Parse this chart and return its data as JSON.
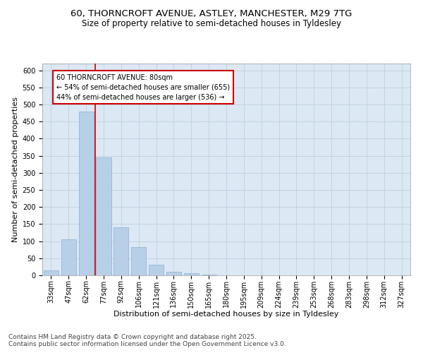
{
  "title_line1": "60, THORNCROFT AVENUE, ASTLEY, MANCHESTER, M29 7TG",
  "title_line2": "Size of property relative to semi-detached houses in Tyldesley",
  "xlabel": "Distribution of semi-detached houses by size in Tyldesley",
  "ylabel": "Number of semi-detached properties",
  "categories": [
    "33sqm",
    "47sqm",
    "62sqm",
    "77sqm",
    "92sqm",
    "106sqm",
    "121sqm",
    "136sqm",
    "150sqm",
    "165sqm",
    "180sqm",
    "195sqm",
    "209sqm",
    "224sqm",
    "239sqm",
    "253sqm",
    "268sqm",
    "283sqm",
    "298sqm",
    "312sqm",
    "327sqm"
  ],
  "values": [
    14,
    105,
    480,
    345,
    140,
    83,
    31,
    11,
    6,
    2,
    0,
    0,
    1,
    0,
    0,
    0,
    0,
    0,
    0,
    0,
    1
  ],
  "bar_color": "#b8cfe8",
  "bar_edgecolor": "#8aafd4",
  "vline_x": 2.5,
  "vline_color": "#cc0000",
  "vline_label": "60 THORNCROFT AVENUE: 80sqm",
  "smaller_pct": "54%",
  "smaller_count": 655,
  "larger_pct": "44%",
  "larger_count": 536,
  "annotation_box_color": "#cc0000",
  "ylim": [
    0,
    620
  ],
  "yticks": [
    0,
    50,
    100,
    150,
    200,
    250,
    300,
    350,
    400,
    450,
    500,
    550,
    600
  ],
  "grid_color": "#c0d0e0",
  "background_color": "#dce8f4",
  "footer_line1": "Contains HM Land Registry data © Crown copyright and database right 2025.",
  "footer_line2": "Contains public sector information licensed under the Open Government Licence v3.0.",
  "title_fontsize": 9.5,
  "subtitle_fontsize": 8.5,
  "axis_label_fontsize": 8,
  "tick_fontsize": 7,
  "annotation_fontsize": 7,
  "footer_fontsize": 6.5
}
